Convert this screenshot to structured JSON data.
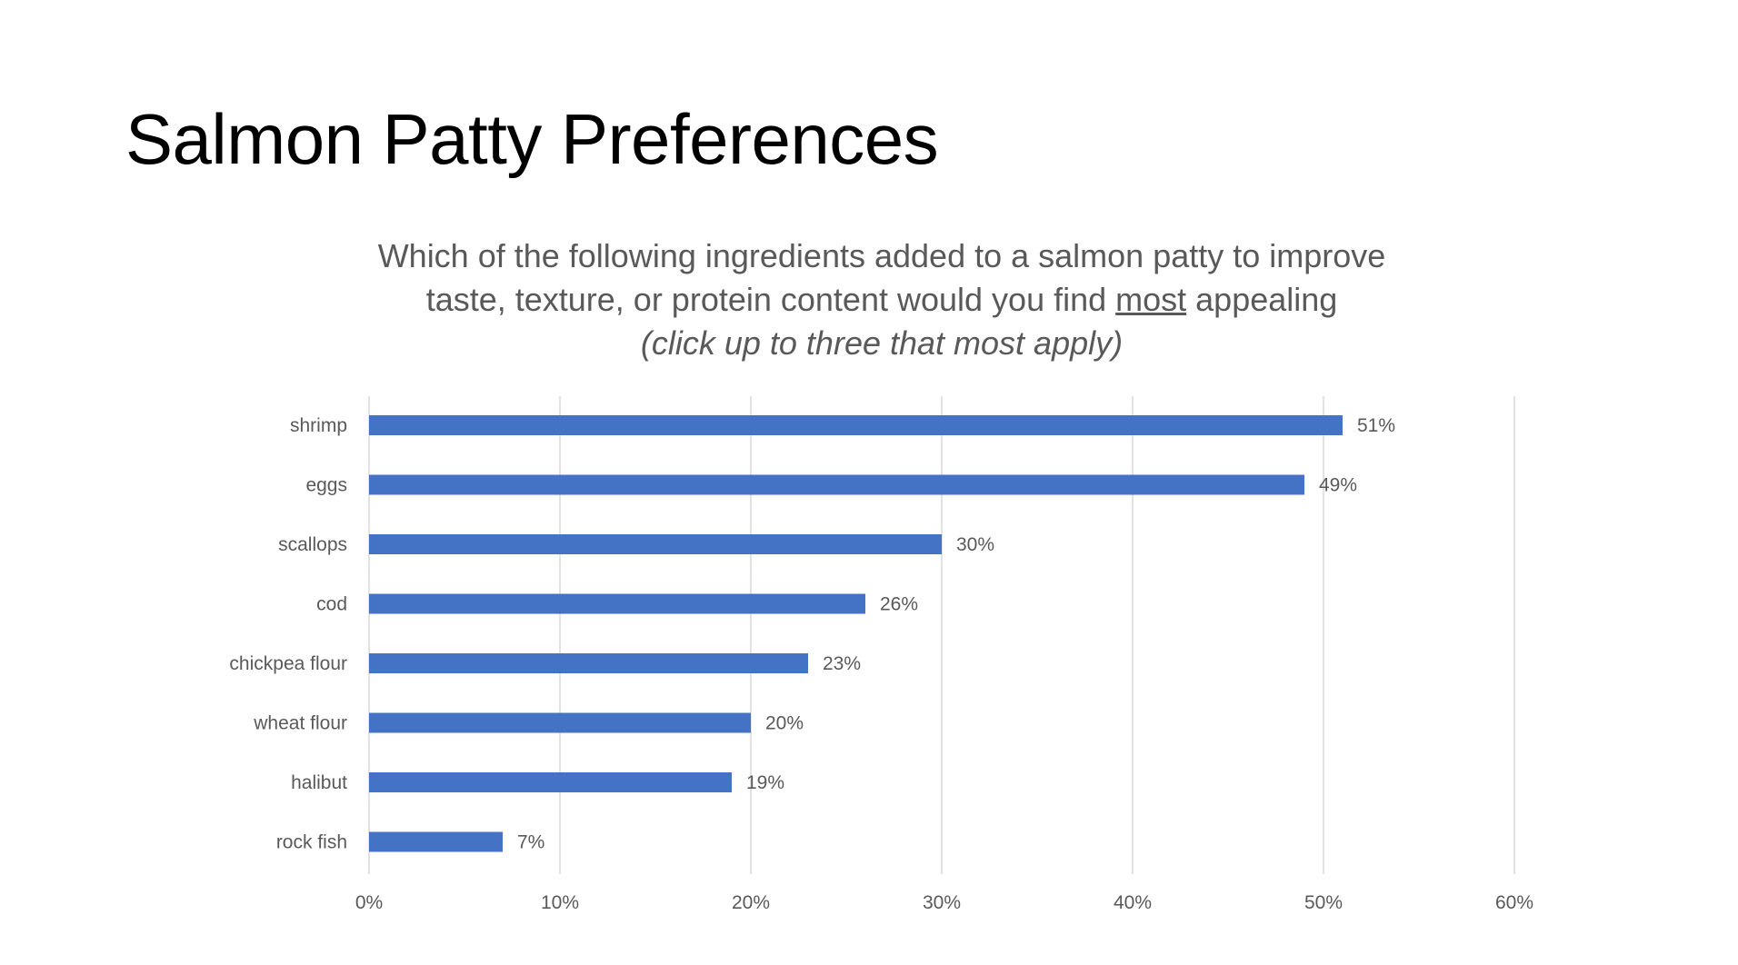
{
  "slide": {
    "title": "Salmon Patty Preferences"
  },
  "chart_data": {
    "type": "bar",
    "orientation": "horizontal",
    "title_lines": [
      "Which of the following ingredients added to a salmon patty to improve",
      {
        "before": "taste, texture, or protein content would you find ",
        "emphasis": "most",
        "after": " appealing"
      },
      "(click up to three that most apply)"
    ],
    "categories": [
      "shrimp",
      "eggs",
      "scallops",
      "cod",
      "chickpea flour",
      "wheat flour",
      "halibut",
      "rock fish"
    ],
    "values": [
      51,
      49,
      30,
      26,
      23,
      20,
      19,
      7
    ],
    "data_labels": [
      "51%",
      "49%",
      "30%",
      "26%",
      "23%",
      "20%",
      "19%",
      "7%"
    ],
    "xlim": [
      0,
      60
    ],
    "x_ticks": [
      0,
      10,
      20,
      30,
      40,
      50,
      60
    ],
    "x_tick_labels": [
      "0%",
      "10%",
      "20%",
      "30%",
      "40%",
      "50%",
      "60%"
    ],
    "grid": true,
    "legend": "none",
    "bar_color": "#4472C4",
    "grid_color": "#D9D9D9",
    "label_color": "#595959"
  }
}
